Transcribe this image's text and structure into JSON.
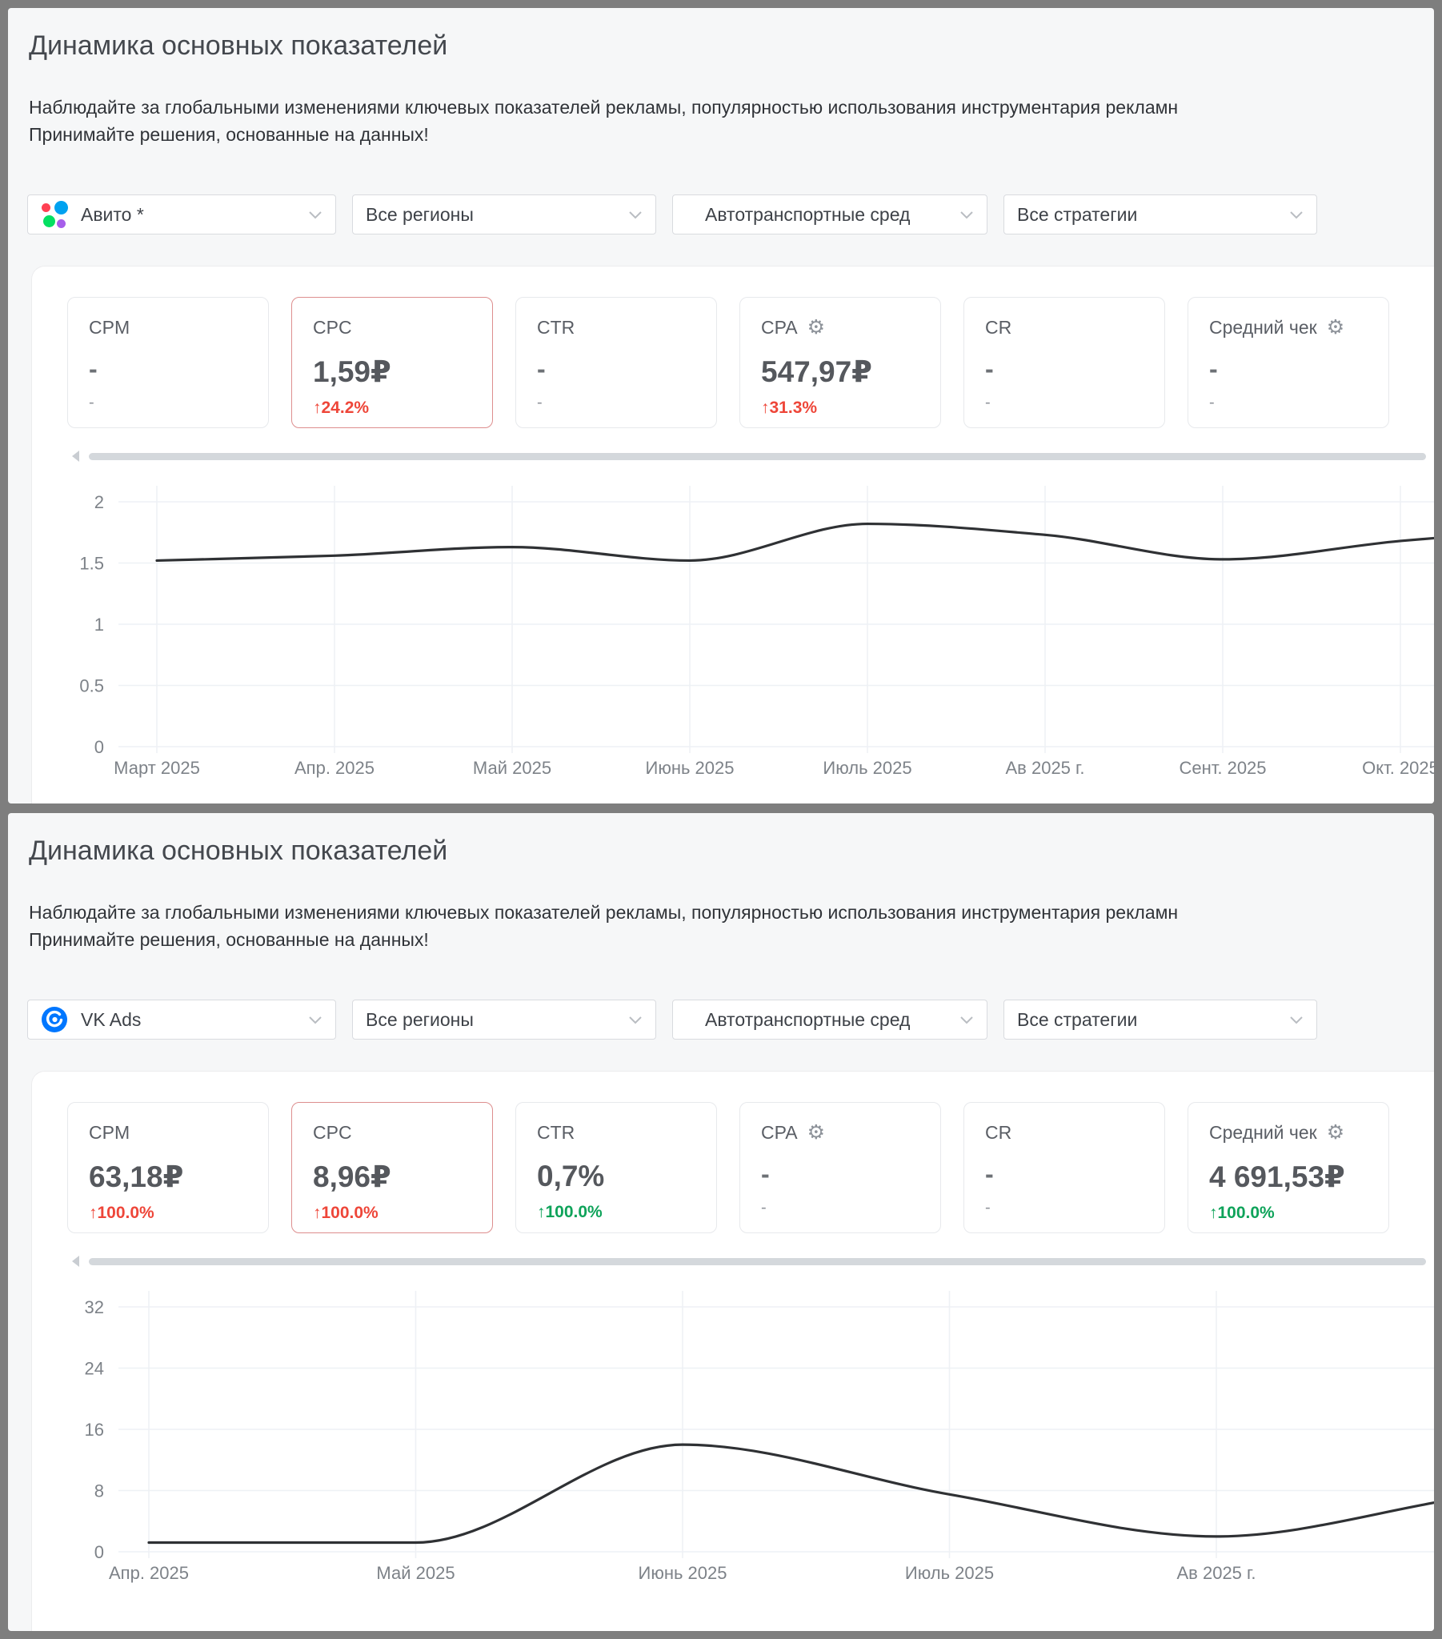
{
  "colors": {
    "frame": "#7e7e7e",
    "panel_bg": "#f6f7f8",
    "card_bg": "#ffffff",
    "selected_card_border": "#dd8e8e",
    "accent_red": "#ee4639",
    "accent_green": "#0fa35a",
    "chart_line": "#2f3134",
    "gridline": "#eef1f5"
  },
  "panels": [
    {
      "title": "Динамика основных показателей",
      "subtitle_line1": "Наблюдайте за глобальными изменениями ключевых показателей рекламы, популярностью использования инструментария рекламн",
      "subtitle_line2": "Принимайте решения, основанные на данных!",
      "filters": {
        "platform": "Авито *",
        "platform_logo": "avito-logo",
        "region": "Все регионы",
        "category": "Автотранспортные сред",
        "strategy": "Все стратегии"
      },
      "metrics": [
        {
          "label": "CPM",
          "value": "-",
          "change": "-",
          "selected": false,
          "gear": false,
          "change_color": ""
        },
        {
          "label": "CPC",
          "value": "1,59₽",
          "change": "↑24.2%",
          "selected": true,
          "gear": false,
          "change_color": "red"
        },
        {
          "label": "CTR",
          "value": "-",
          "change": "-",
          "selected": false,
          "gear": false,
          "change_color": ""
        },
        {
          "label": "CPA",
          "value": "547,97₽",
          "change": "↑31.3%",
          "selected": false,
          "gear": true,
          "change_color": "red"
        },
        {
          "label": "CR",
          "value": "-",
          "change": "-",
          "selected": false,
          "gear": false,
          "change_color": ""
        },
        {
          "label": "Средний чек",
          "value": "-",
          "change": "-",
          "selected": false,
          "gear": true,
          "change_color": ""
        }
      ],
      "chart_data": {
        "type": "line",
        "series_label": "CPC",
        "x_labels": [
          "Март 2025",
          "Апр. 2025",
          "Май 2025",
          "Июнь 2025",
          "Июль 2025",
          "Ав 2025 г.",
          "Сент. 2025",
          "Окт. 2025"
        ],
        "values": [
          1.52,
          1.56,
          1.63,
          1.52,
          1.82,
          1.73,
          1.53,
          1.68
        ],
        "right_edge_value": 1.72,
        "y_ticks": [
          0,
          0.5,
          1,
          1.5,
          2
        ],
        "ylim": [
          0,
          2.2
        ],
        "grid": "on",
        "legend": "none"
      }
    },
    {
      "title": "Динамика основных показателей",
      "subtitle_line1": "Наблюдайте за глобальными изменениями ключевых показателей рекламы, популярностью использования инструментария рекламн",
      "subtitle_line2": "Принимайте решения, основанные на данных!",
      "filters": {
        "platform": "VK Ads",
        "platform_logo": "vk-ads-logo",
        "region": "Все регионы",
        "category": "Автотранспортные сред",
        "strategy": "Все стратегии"
      },
      "metrics": [
        {
          "label": "CPM",
          "value": "63,18₽",
          "change": "↑100.0%",
          "selected": false,
          "gear": false,
          "change_color": "red"
        },
        {
          "label": "CPC",
          "value": "8,96₽",
          "change": "↑100.0%",
          "selected": true,
          "gear": false,
          "change_color": "red"
        },
        {
          "label": "CTR",
          "value": "0,7%",
          "change": "↑100.0%",
          "selected": false,
          "gear": false,
          "change_color": "green"
        },
        {
          "label": "CPA",
          "value": "-",
          "change": "-",
          "selected": false,
          "gear": true,
          "change_color": ""
        },
        {
          "label": "CR",
          "value": "-",
          "change": "-",
          "selected": false,
          "gear": false,
          "change_color": ""
        },
        {
          "label": "Средний чек",
          "value": "4 691,53₽",
          "change": "↑100.0%",
          "selected": false,
          "gear": true,
          "change_color": "green"
        }
      ],
      "chart_data": {
        "type": "line",
        "series_label": "CPC",
        "x_labels": [
          "Апр. 2025",
          "Май 2025",
          "Июнь 2025",
          "Июль 2025",
          "Ав 2025 г."
        ],
        "values": [
          1.2,
          1.2,
          14,
          7.5,
          2
        ],
        "right_edge_value": 7,
        "y_ticks": [
          0,
          8,
          16,
          24,
          32
        ],
        "ylim": [
          0,
          35
        ],
        "grid": "on",
        "legend": "none"
      }
    }
  ]
}
